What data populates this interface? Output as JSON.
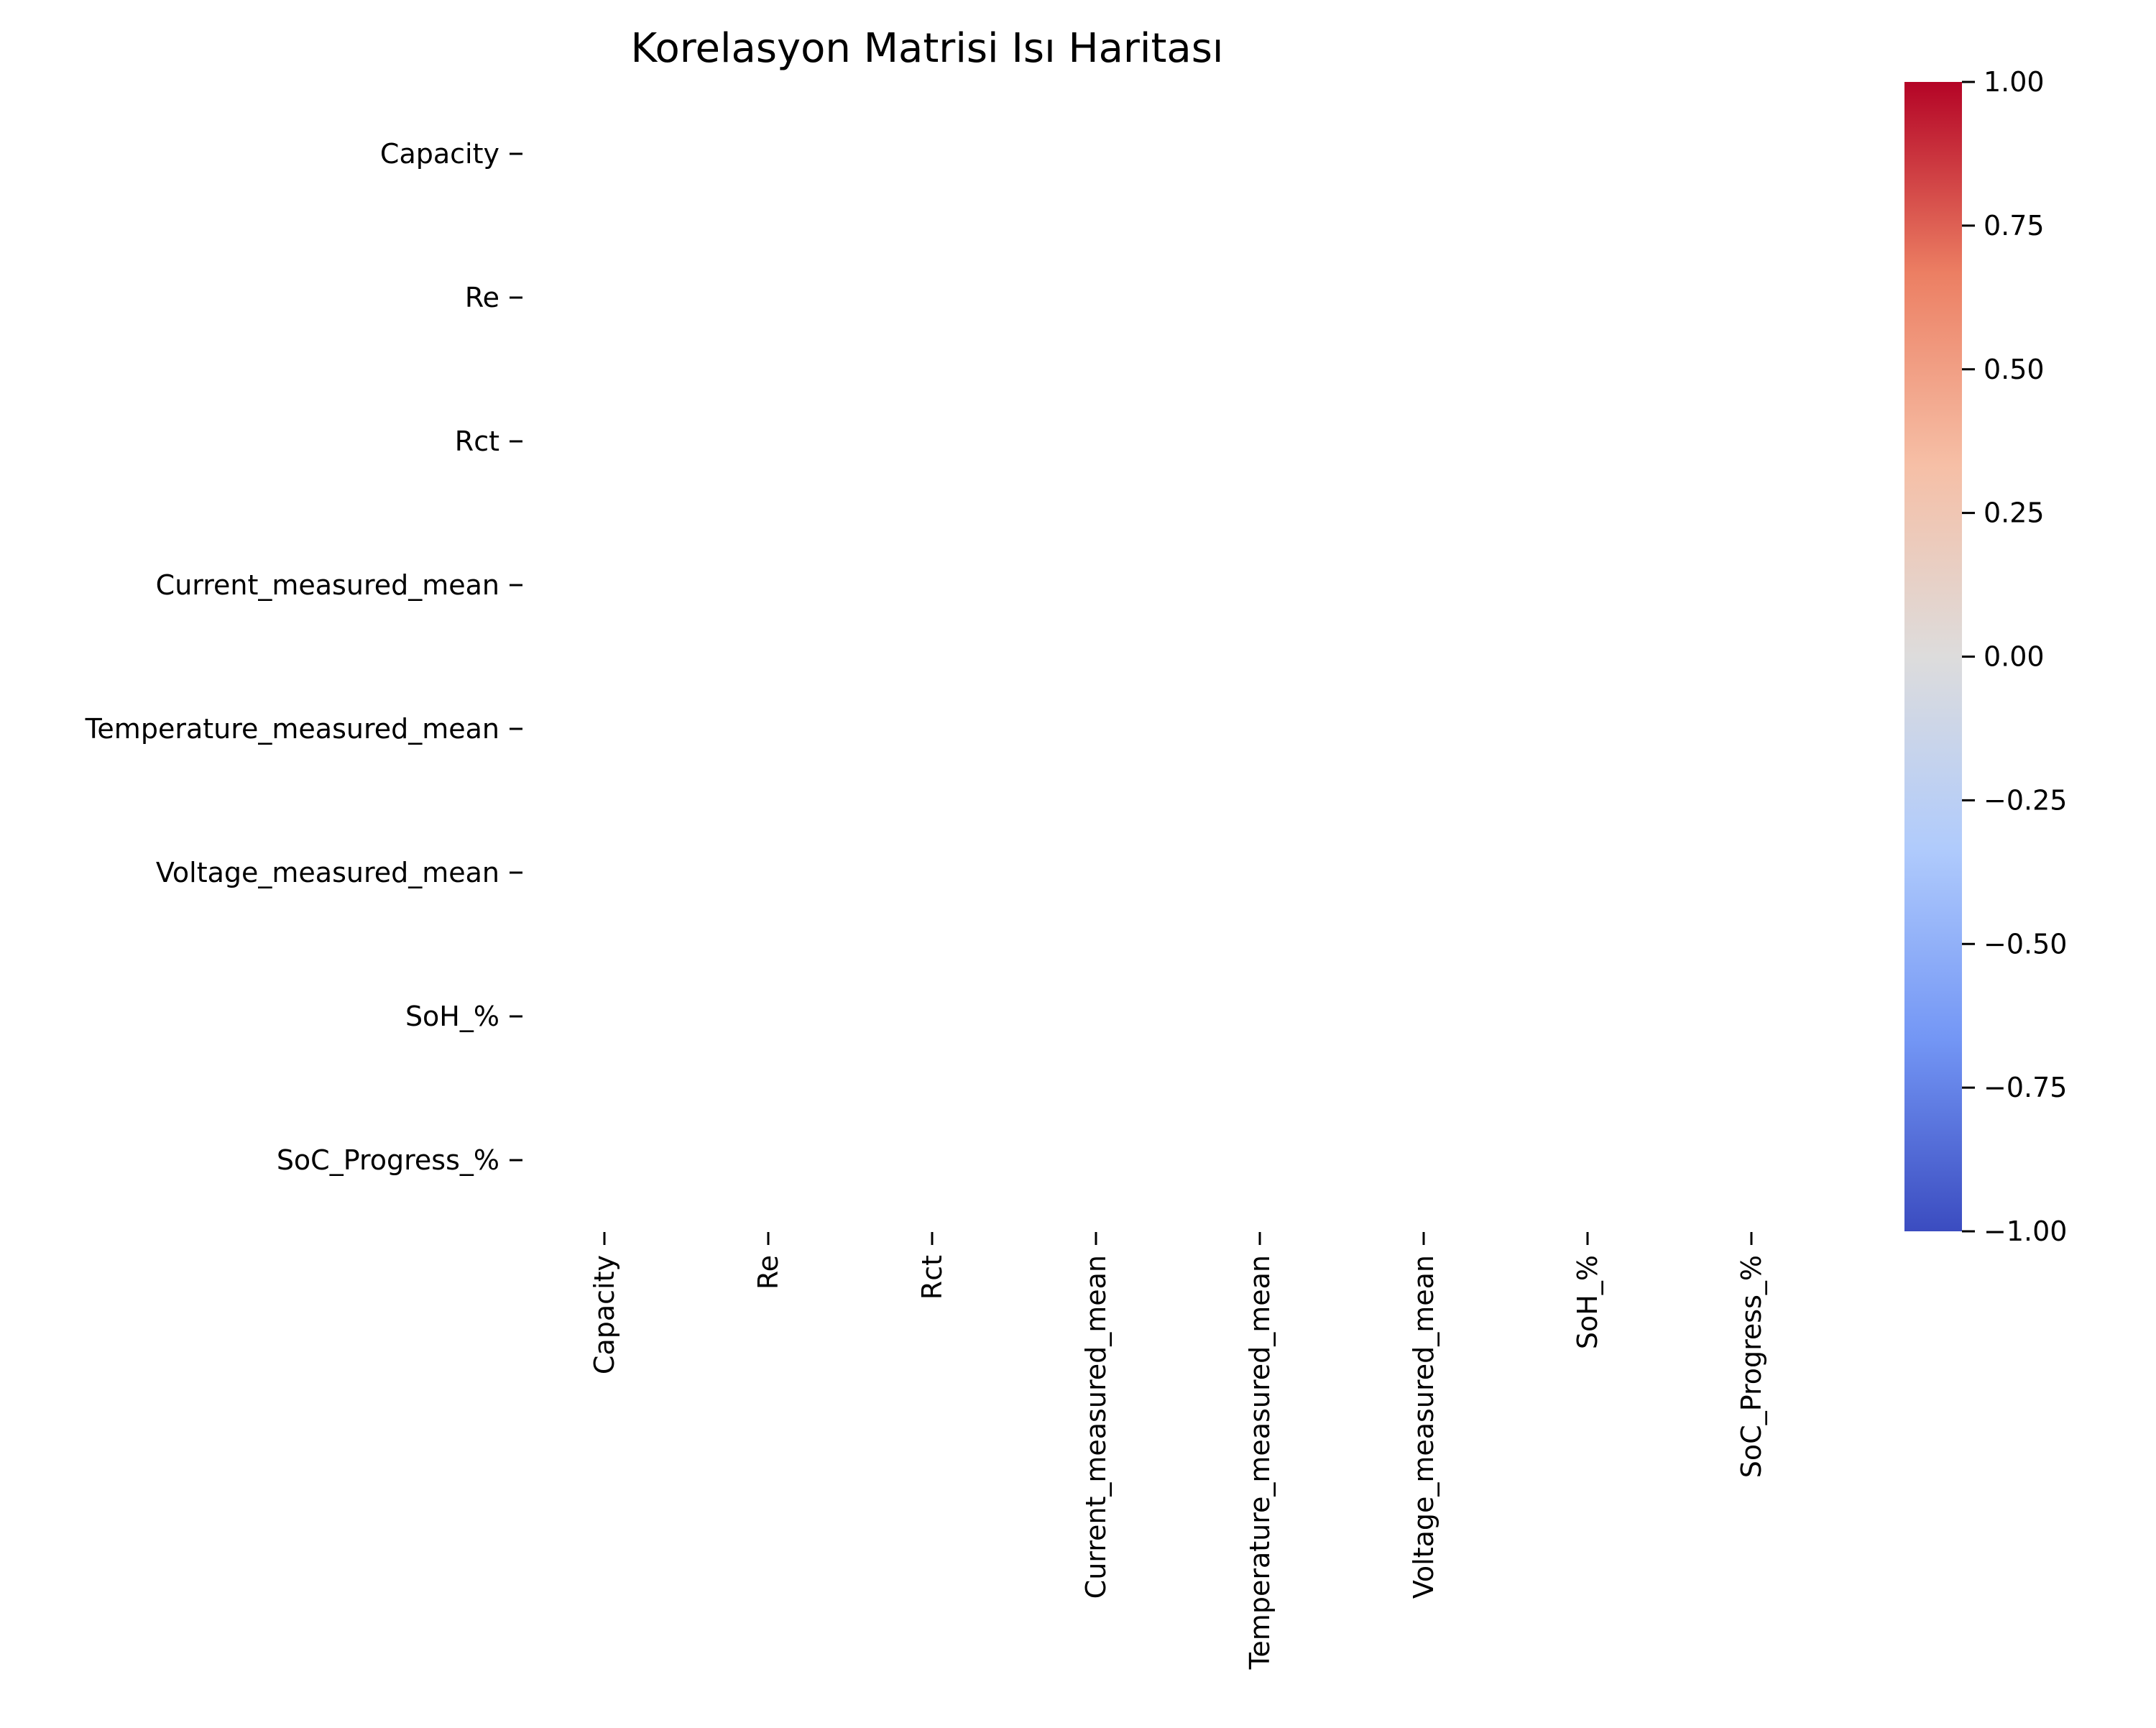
{
  "chart_data": {
    "type": "heatmap",
    "title": "Korelasyon Matrisi Isı Haritası",
    "xlabel": "",
    "ylabel": "",
    "x_categories": [
      "Capacity",
      "Re",
      "Rct",
      "Current_measured_mean",
      "Temperature_measured_mean",
      "Voltage_measured_mean",
      "SoH_%",
      "SoC_Progress_%"
    ],
    "y_categories": [
      "Capacity",
      "Re",
      "Rct",
      "Current_measured_mean",
      "Temperature_measured_mean",
      "Voltage_measured_mean",
      "SoH_%",
      "SoC_Progress_%"
    ],
    "values": [
      [
        null,
        null,
        null,
        null,
        null,
        null,
        null,
        null
      ],
      [
        null,
        null,
        null,
        null,
        null,
        null,
        null,
        null
      ],
      [
        null,
        null,
        null,
        null,
        null,
        null,
        null,
        null
      ],
      [
        null,
        null,
        null,
        null,
        null,
        null,
        null,
        null
      ],
      [
        null,
        null,
        null,
        null,
        null,
        null,
        null,
        null
      ],
      [
        null,
        null,
        null,
        null,
        null,
        null,
        null,
        null
      ],
      [
        null,
        null,
        null,
        null,
        null,
        null,
        null,
        null
      ],
      [
        null,
        null,
        null,
        null,
        null,
        null,
        null,
        null
      ]
    ],
    "colormap": "coolwarm",
    "colormap_stops": [
      "#3b4cc0",
      "#7396f5",
      "#b0cbfc",
      "#dddcdc",
      "#f6bfa6",
      "#ec7f63",
      "#b40426"
    ],
    "colorbar": {
      "range": [
        -1.0,
        1.0
      ],
      "ticks": [
        "1.00",
        "0.75",
        "0.50",
        "0.25",
        "0.00",
        "−0.25",
        "−0.50",
        "−0.75",
        "−1.00"
      ],
      "tick_values": [
        1.0,
        0.75,
        0.5,
        0.25,
        0.0,
        -0.25,
        -0.5,
        -0.75,
        -1.0
      ],
      "placement": "right"
    },
    "grid": false,
    "legend": "none"
  }
}
